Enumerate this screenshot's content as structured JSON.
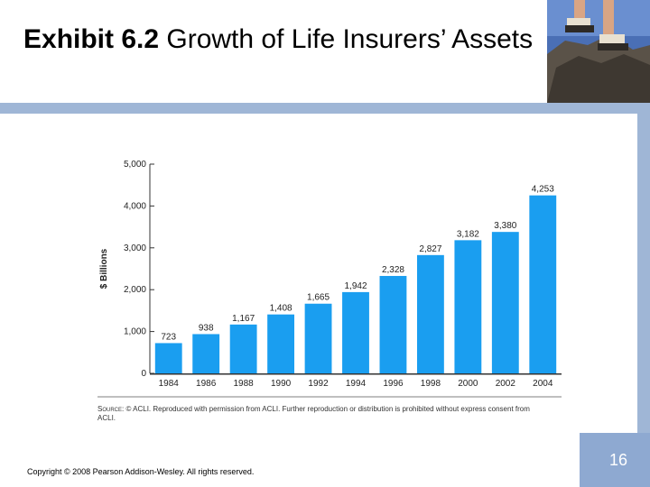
{
  "title": {
    "bold": "Exhibit 6.2",
    "rest": " Growth of Life Insurers’ Assets"
  },
  "footer": {
    "copyright": "Copyright © 2008 Pearson Addison-Wesley. All rights reserved.",
    "page_number": "16"
  },
  "source": {
    "label": "Source:",
    "text": " © ACLI. Reproduced with permission from ACLI. Further reproduction or distribution is prohibited without express consent from ACLI."
  },
  "colors": {
    "bar": "#1a9ef0",
    "band": "#9fb6d6",
    "page_box": "#8ea9d1"
  },
  "chart_data": {
    "type": "bar",
    "categories": [
      "1984",
      "1986",
      "1988",
      "1990",
      "1992",
      "1994",
      "1996",
      "1998",
      "2000",
      "2002",
      "2004"
    ],
    "values": [
      723,
      938,
      1167,
      1408,
      1665,
      1942,
      2328,
      2827,
      3182,
      3380,
      4253
    ],
    "value_labels": [
      "723",
      "938",
      "1,167",
      "1,408",
      "1,665",
      "1,942",
      "2,328",
      "2,827",
      "3,182",
      "3,380",
      "4,253"
    ],
    "ylabel": "$ Billions",
    "xlabel": "",
    "ylim": [
      0,
      5000
    ],
    "yticks": [
      0,
      1000,
      2000,
      3000,
      4000,
      5000
    ],
    "ytick_labels": [
      "0",
      "1,000",
      "2,000",
      "3,000",
      "4,000",
      "5,000"
    ],
    "grid": false,
    "legend": "none"
  }
}
